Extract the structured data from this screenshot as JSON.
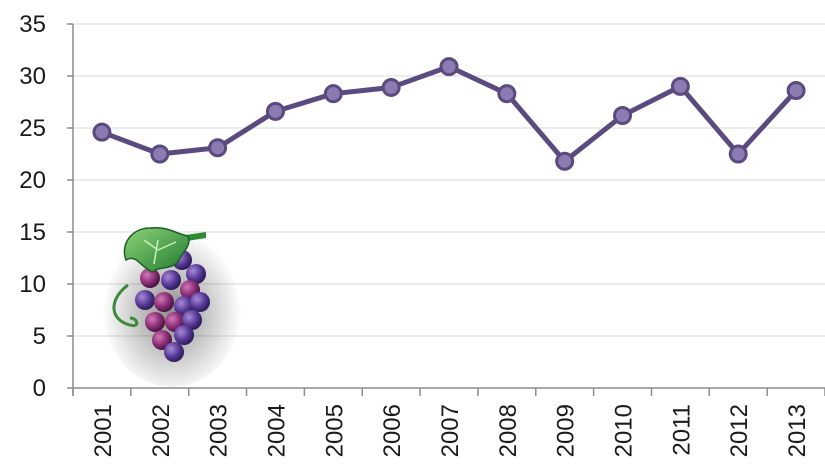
{
  "chart_data": {
    "type": "line",
    "categories": [
      "2001",
      "2002",
      "2003",
      "2004",
      "2005",
      "2006",
      "2007",
      "2008",
      "2009",
      "2010",
      "2011",
      "2012",
      "2013"
    ],
    "series": [
      {
        "values": [
          24.6,
          22.5,
          23.1,
          26.6,
          28.3,
          28.9,
          30.9,
          28.3,
          21.8,
          26.2,
          29.0,
          22.5,
          28.6
        ]
      }
    ],
    "ylim": [
      0,
      35
    ],
    "yticks": [
      0,
      5,
      10,
      15,
      20,
      25,
      30,
      35
    ],
    "grid": true,
    "legend": "none",
    "colors": {
      "line": "#5b4a80",
      "marker_fill": "#8b7bb0",
      "marker_stroke": "#5b4a80"
    },
    "decoration": "grape-cluster-icon"
  }
}
